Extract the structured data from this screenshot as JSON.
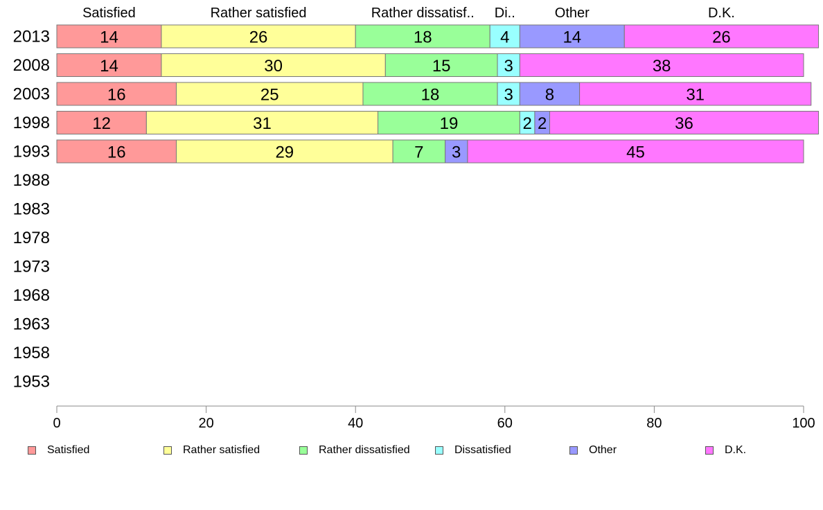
{
  "chart_data": {
    "type": "bar",
    "orientation": "horizontal-stacked",
    "categories": [
      "2013",
      "2008",
      "2003",
      "1998",
      "1993",
      "1988",
      "1983",
      "1978",
      "1973",
      "1968",
      "1963",
      "1958",
      "1953"
    ],
    "series": [
      {
        "name": "Satisfied",
        "short_label": "Satisfied",
        "color": "#ff9999",
        "values": [
          14,
          14,
          16,
          12,
          16,
          null,
          null,
          null,
          null,
          null,
          null,
          null,
          null
        ]
      },
      {
        "name": "Rather satisfied",
        "short_label": "Rather satisfied",
        "color": "#ffff99",
        "values": [
          26,
          30,
          25,
          31,
          29,
          null,
          null,
          null,
          null,
          null,
          null,
          null,
          null
        ]
      },
      {
        "name": "Rather dissatisfied",
        "short_label": "Rather dissatisf..",
        "color": "#99ff99",
        "values": [
          18,
          15,
          18,
          19,
          7,
          null,
          null,
          null,
          null,
          null,
          null,
          null,
          null
        ]
      },
      {
        "name": "Dissatisfied",
        "short_label": "Di..",
        "color": "#99ffff",
        "values": [
          4,
          3,
          3,
          2,
          0,
          null,
          null,
          null,
          null,
          null,
          null,
          null,
          null
        ]
      },
      {
        "name": "Other",
        "short_label": "Other",
        "color": "#9999ff",
        "values": [
          14,
          0,
          8,
          2,
          3,
          null,
          null,
          null,
          null,
          null,
          null,
          null,
          null
        ]
      },
      {
        "name": "D.K.",
        "short_label": "D.K.",
        "color": "#ff77ff",
        "values": [
          26,
          38,
          31,
          36,
          45,
          null,
          null,
          null,
          null,
          null,
          null,
          null,
          null
        ]
      }
    ],
    "xlim": [
      0,
      100
    ],
    "xticks": [
      "0",
      "20",
      "40",
      "60",
      "80",
      "100"
    ],
    "legend_position": "bottom",
    "grid": false
  }
}
